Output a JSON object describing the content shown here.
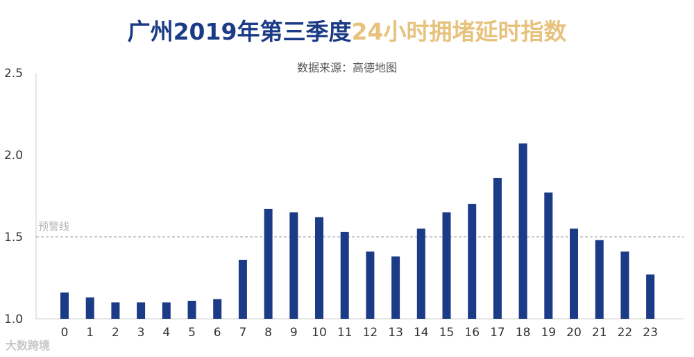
{
  "title_part1": "广州2019年第三季度",
  "title_part2": "24小时拥堵延时指数",
  "subtitle": "数据来源：高德地图",
  "watermark": "大数跨境",
  "colors": {
    "bar": "#1b3b86",
    "title_dark": "#1b3b86",
    "title_gold": "#e7c27c",
    "warn_line": "#999999"
  },
  "chart_data": {
    "type": "bar",
    "title": "广州2019年第三季度24小时拥堵延时指数",
    "subtitle": "数据来源：高德地图",
    "xlabel": "",
    "ylabel": "",
    "categories": [
      "0",
      "1",
      "2",
      "3",
      "4",
      "5",
      "6",
      "7",
      "8",
      "9",
      "10",
      "11",
      "12",
      "13",
      "14",
      "15",
      "16",
      "17",
      "18",
      "19",
      "20",
      "21",
      "22",
      "23"
    ],
    "values": [
      1.16,
      1.13,
      1.1,
      1.1,
      1.1,
      1.11,
      1.12,
      1.36,
      1.67,
      1.65,
      1.62,
      1.53,
      1.41,
      1.38,
      1.55,
      1.65,
      1.7,
      1.86,
      2.07,
      1.77,
      1.55,
      1.48,
      1.41,
      1.27
    ],
    "ylim": [
      1.0,
      2.5
    ],
    "yticks": [
      "1.0",
      "1.5",
      "2.0",
      "2.5"
    ],
    "grid": false,
    "annotations": [
      {
        "label": "预警线",
        "y": 1.5
      }
    ]
  }
}
